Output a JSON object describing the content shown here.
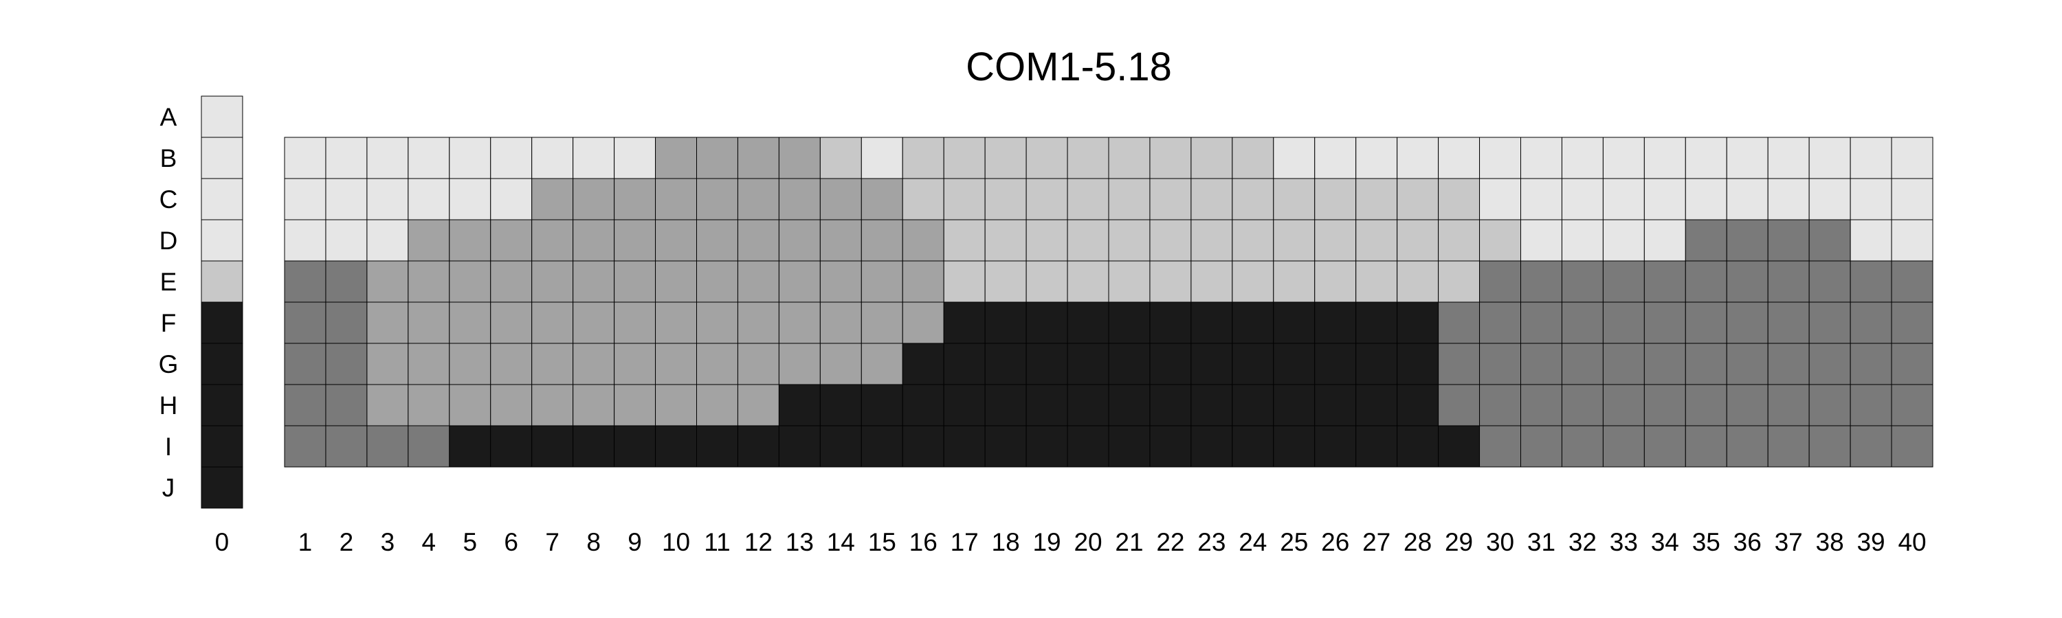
{
  "chart_data": {
    "type": "heatmap",
    "title": "COM1-5.18",
    "palette": {
      "0": "#e6e6e6",
      "1": "#c8c8c8",
      "2": "#a3a3a3",
      "3": "#7a7a7a",
      "4": "#1a1a1a"
    },
    "reference_column": {
      "label": "0",
      "rows": [
        "A",
        "B",
        "C",
        "D",
        "E",
        "F",
        "G",
        "H",
        "I",
        "J"
      ],
      "values": [
        0,
        0,
        0,
        0,
        1,
        4,
        4,
        4,
        4,
        4
      ]
    },
    "grid": {
      "rows": [
        "B",
        "C",
        "D",
        "E",
        "F",
        "G",
        "H",
        "I"
      ],
      "columns": [
        "1",
        "2",
        "3",
        "4",
        "5",
        "6",
        "7",
        "8",
        "9",
        "10",
        "11",
        "12",
        "13",
        "14",
        "15",
        "16",
        "17",
        "18",
        "19",
        "20",
        "21",
        "22",
        "23",
        "24",
        "25",
        "26",
        "27",
        "28",
        "29",
        "30",
        "31",
        "32",
        "33",
        "34",
        "35",
        "36",
        "37",
        "38",
        "39",
        "40"
      ],
      "values": [
        [
          0,
          0,
          0,
          0,
          0,
          0,
          0,
          0,
          0,
          2,
          2,
          2,
          2,
          1,
          0,
          1,
          1,
          1,
          1,
          1,
          1,
          1,
          1,
          1,
          0,
          0,
          0,
          0,
          0,
          0,
          0,
          0,
          0,
          0,
          0,
          0,
          0,
          0,
          0,
          0
        ],
        [
          0,
          0,
          0,
          0,
          0,
          0,
          2,
          2,
          2,
          2,
          2,
          2,
          2,
          2,
          2,
          1,
          1,
          1,
          1,
          1,
          1,
          1,
          1,
          1,
          1,
          1,
          1,
          1,
          1,
          0,
          0,
          0,
          0,
          0,
          0,
          0,
          0,
          0,
          0,
          0
        ],
        [
          0,
          0,
          0,
          2,
          2,
          2,
          2,
          2,
          2,
          2,
          2,
          2,
          2,
          2,
          2,
          2,
          1,
          1,
          1,
          1,
          1,
          1,
          1,
          1,
          1,
          1,
          1,
          1,
          1,
          1,
          0,
          0,
          0,
          0,
          3,
          3,
          3,
          3,
          0,
          0
        ],
        [
          3,
          3,
          2,
          2,
          2,
          2,
          2,
          2,
          2,
          2,
          2,
          2,
          2,
          2,
          2,
          2,
          1,
          1,
          1,
          1,
          1,
          1,
          1,
          1,
          1,
          1,
          1,
          1,
          1,
          3,
          3,
          3,
          3,
          3,
          3,
          3,
          3,
          3,
          3,
          3
        ],
        [
          3,
          3,
          2,
          2,
          2,
          2,
          2,
          2,
          2,
          2,
          2,
          2,
          2,
          2,
          2,
          2,
          4,
          4,
          4,
          4,
          4,
          4,
          4,
          4,
          4,
          4,
          4,
          4,
          3,
          3,
          3,
          3,
          3,
          3,
          3,
          3,
          3,
          3,
          3,
          3
        ],
        [
          3,
          3,
          2,
          2,
          2,
          2,
          2,
          2,
          2,
          2,
          2,
          2,
          2,
          2,
          2,
          4,
          4,
          4,
          4,
          4,
          4,
          4,
          4,
          4,
          4,
          4,
          4,
          4,
          3,
          3,
          3,
          3,
          3,
          3,
          3,
          3,
          3,
          3,
          3,
          3
        ],
        [
          3,
          3,
          2,
          2,
          2,
          2,
          2,
          2,
          2,
          2,
          2,
          2,
          4,
          4,
          4,
          4,
          4,
          4,
          4,
          4,
          4,
          4,
          4,
          4,
          4,
          4,
          4,
          4,
          3,
          3,
          3,
          3,
          3,
          3,
          3,
          3,
          3,
          3,
          3,
          3
        ],
        [
          3,
          3,
          3,
          3,
          4,
          4,
          4,
          4,
          4,
          4,
          4,
          4,
          4,
          4,
          4,
          4,
          4,
          4,
          4,
          4,
          4,
          4,
          4,
          4,
          4,
          4,
          4,
          4,
          4,
          3,
          3,
          3,
          3,
          3,
          3,
          3,
          3,
          3,
          3,
          3
        ]
      ]
    }
  }
}
